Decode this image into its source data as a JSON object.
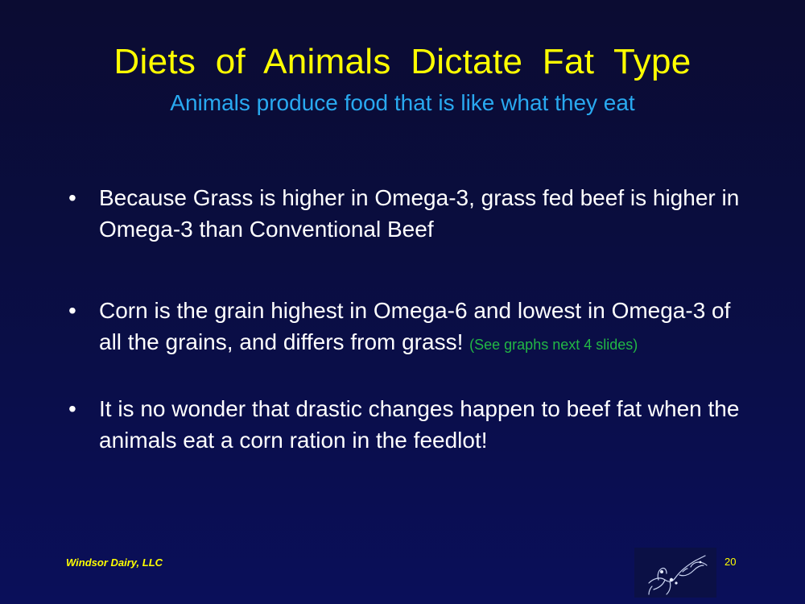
{
  "slide": {
    "title": "Diets of Animals Dictate Fat Type",
    "subtitle": "Animals produce food that is like what they eat",
    "bullets": [
      {
        "marker": "•",
        "text": "Because Grass is higher in Omega-3, grass fed beef is higher in Omega-3 than Conventional Beef"
      },
      {
        "marker": "•",
        "text": "Corn is the grain highest in Omega-6 and lowest in Omega-3 of all the grains, and differs from grass! ",
        "note": "(See graphs next 4 slides)"
      },
      {
        "marker": "•",
        "text": "It is no wonder that drastic changes happen to beef fat when the animals eat a corn ration in the feedlot!"
      }
    ],
    "footer": {
      "company": "Windsor Dairy, LLC",
      "page_number": "20",
      "logo_icon": "cow-sketch-icon"
    }
  },
  "colors": {
    "title": "#ffff00",
    "subtitle": "#29a9f0",
    "body_text": "#ffffff",
    "note": "#22b845",
    "footer": "#ffff00",
    "background_top": "#0b0c32",
    "background_bottom": "#0a0f5a"
  }
}
